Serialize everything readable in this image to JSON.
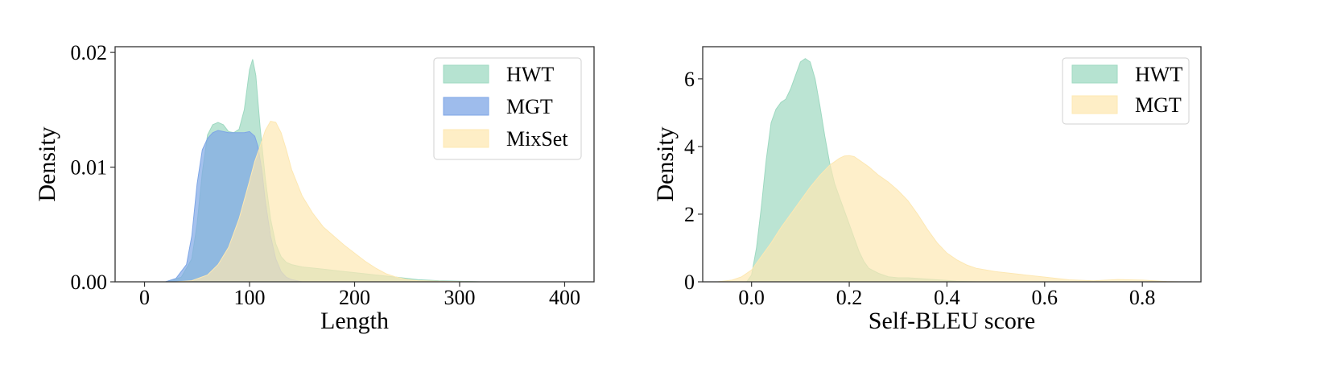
{
  "chart_data": [
    {
      "type": "area",
      "xlabel": "Length",
      "ylabel": "Density",
      "xlim": [
        -28,
        428
      ],
      "ylim": [
        0,
        0.0205
      ],
      "xticks": [
        "0",
        "100",
        "200",
        "300",
        "400"
      ],
      "xtick_values": [
        0,
        100,
        200,
        300,
        400
      ],
      "yticks": [
        "0.00",
        "0.01",
        "0.02"
      ],
      "ytick_values": [
        0,
        0.01,
        0.02
      ],
      "legend_position": "top-right",
      "series": [
        {
          "name": "HWT",
          "color": "#9ed9c1",
          "x": [
            20,
            35,
            45,
            50,
            55,
            60,
            65,
            70,
            75,
            80,
            85,
            90,
            95,
            100,
            103,
            106,
            110,
            115,
            120,
            125,
            130,
            135,
            140,
            150,
            160,
            170,
            180,
            190,
            200,
            210,
            220,
            230,
            240,
            250,
            260,
            280,
            300,
            320,
            340,
            360,
            380
          ],
          "y": [
            0,
            0.0004,
            0.002,
            0.005,
            0.0095,
            0.0128,
            0.0137,
            0.0139,
            0.0137,
            0.0131,
            0.013,
            0.0133,
            0.015,
            0.0185,
            0.0194,
            0.018,
            0.0135,
            0.009,
            0.0055,
            0.0033,
            0.0022,
            0.0017,
            0.0015,
            0.0013,
            0.0012,
            0.0011,
            0.001,
            0.0009,
            0.0008,
            0.0007,
            0.0006,
            0.0005,
            0.0004,
            0.0003,
            0.0002,
            0.0001,
            5e-05,
            0,
            0,
            0,
            0
          ]
        },
        {
          "name": "MGT",
          "color": "#7ea6e6",
          "x": [
            20,
            30,
            40,
            45,
            50,
            55,
            60,
            65,
            70,
            75,
            80,
            85,
            90,
            95,
            100,
            105,
            108,
            112,
            115,
            120,
            125,
            130,
            135,
            140,
            150,
            160
          ],
          "y": [
            0,
            0.0003,
            0.0015,
            0.004,
            0.0085,
            0.0115,
            0.0125,
            0.013,
            0.0132,
            0.0131,
            0.013,
            0.013,
            0.013,
            0.013,
            0.0131,
            0.0127,
            0.0118,
            0.0095,
            0.007,
            0.004,
            0.002,
            0.0009,
            0.0004,
            0.0002,
            0,
            0
          ]
        },
        {
          "name": "MixSet",
          "color": "#fde8b3",
          "x": [
            30,
            45,
            60,
            70,
            80,
            90,
            100,
            105,
            110,
            115,
            120,
            125,
            130,
            135,
            140,
            150,
            160,
            170,
            180,
            190,
            200,
            210,
            220,
            230,
            240,
            250,
            260,
            280,
            300,
            320,
            340,
            360,
            380
          ],
          "y": [
            0,
            0.0001,
            0.0006,
            0.0015,
            0.003,
            0.0055,
            0.0088,
            0.0105,
            0.0118,
            0.0132,
            0.014,
            0.0139,
            0.013,
            0.0115,
            0.0098,
            0.0075,
            0.006,
            0.0048,
            0.004,
            0.0032,
            0.0025,
            0.0018,
            0.0012,
            0.0007,
            0.0004,
            0.0002,
            0.0001,
            5e-05,
            2e-05,
            0,
            0,
            0,
            0
          ]
        }
      ]
    },
    {
      "type": "area",
      "xlabel": "Self-BLEU score",
      "ylabel": "Density",
      "xlim": [
        -0.1,
        0.92
      ],
      "ylim": [
        0,
        6.95
      ],
      "xticks": [
        "0.0",
        "0.2",
        "0.4",
        "0.6",
        "0.8"
      ],
      "xtick_values": [
        0,
        0.2,
        0.4,
        0.6,
        0.8
      ],
      "yticks": [
        "0",
        "2",
        "4",
        "6"
      ],
      "ytick_values": [
        0,
        2,
        4,
        6
      ],
      "legend_position": "top-right",
      "series": [
        {
          "name": "HWT",
          "color": "#9ed9c1",
          "x": [
            -0.01,
            0.0,
            0.01,
            0.02,
            0.03,
            0.04,
            0.05,
            0.06,
            0.07,
            0.08,
            0.09,
            0.1,
            0.11,
            0.12,
            0.13,
            0.14,
            0.15,
            0.16,
            0.17,
            0.18,
            0.19,
            0.2,
            0.21,
            0.22,
            0.23,
            0.24,
            0.26,
            0.28,
            0.3,
            0.32,
            0.34,
            0.36,
            0.38,
            0.4,
            0.42,
            0.44,
            0.46
          ],
          "y": [
            0,
            0.2,
            1.0,
            2.2,
            3.6,
            4.7,
            5.1,
            5.3,
            5.4,
            5.7,
            6.1,
            6.5,
            6.6,
            6.5,
            6.0,
            5.2,
            4.3,
            3.5,
            2.9,
            2.5,
            2.1,
            1.7,
            1.3,
            0.9,
            0.6,
            0.4,
            0.25,
            0.15,
            0.12,
            0.12,
            0.1,
            0.08,
            0.06,
            0.04,
            0.02,
            0.01,
            0
          ]
        },
        {
          "name": "MGT",
          "color": "#fde8b3",
          "x": [
            -0.07,
            -0.04,
            -0.02,
            0.0,
            0.02,
            0.04,
            0.06,
            0.08,
            0.1,
            0.12,
            0.14,
            0.16,
            0.18,
            0.19,
            0.2,
            0.21,
            0.22,
            0.24,
            0.26,
            0.28,
            0.3,
            0.32,
            0.34,
            0.36,
            0.38,
            0.4,
            0.42,
            0.44,
            0.46,
            0.5,
            0.55,
            0.6,
            0.65,
            0.7,
            0.75,
            0.8,
            0.85,
            0.88
          ],
          "y": [
            0,
            0.05,
            0.15,
            0.35,
            0.75,
            1.15,
            1.6,
            2.0,
            2.4,
            2.8,
            3.15,
            3.45,
            3.65,
            3.72,
            3.73,
            3.7,
            3.6,
            3.4,
            3.15,
            2.95,
            2.7,
            2.4,
            2.0,
            1.55,
            1.15,
            0.85,
            0.65,
            0.5,
            0.4,
            0.3,
            0.22,
            0.14,
            0.06,
            0.03,
            0.07,
            0.05,
            0.01,
            0
          ]
        }
      ]
    }
  ]
}
